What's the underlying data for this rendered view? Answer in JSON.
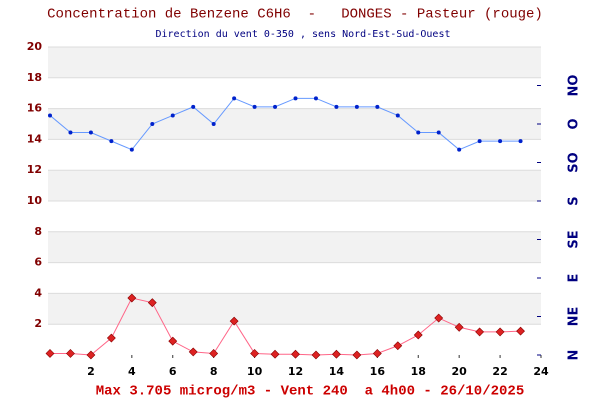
{
  "chart_data": {
    "type": "line",
    "title": "Concentration de Benzene C6H6  -   DONGES - Pasteur (rouge)",
    "subtitle": "Direction du vent 0-350 , sens Nord-Est-Sud-Ouest",
    "footer": "Max 3.705 microg/m3 - Vent 240  a 4h00 - 26/10/2025",
    "x": [
      0,
      1,
      2,
      3,
      4,
      5,
      6,
      7,
      8,
      9,
      10,
      11,
      12,
      13,
      14,
      15,
      16,
      17,
      18,
      19,
      20,
      21,
      22,
      23
    ],
    "xlim": [
      0,
      24
    ],
    "xticks": [
      2,
      4,
      6,
      8,
      10,
      12,
      14,
      16,
      18,
      20,
      22,
      24
    ],
    "ylim": [
      0,
      20
    ],
    "yticks": [
      2,
      4,
      6,
      8,
      10,
      12,
      14,
      16,
      18,
      20
    ],
    "y2lim": [
      0,
      360
    ],
    "y2ticks": [
      {
        "value": 0,
        "label": "N"
      },
      {
        "value": 45,
        "label": "NE"
      },
      {
        "value": 90,
        "label": "E"
      },
      {
        "value": 135,
        "label": "SE"
      },
      {
        "value": 180,
        "label": "S"
      },
      {
        "value": 225,
        "label": "SO"
      },
      {
        "value": 270,
        "label": "O"
      },
      {
        "value": 315,
        "label": "NO"
      }
    ],
    "grid": true,
    "series": [
      {
        "color": "#dd2222",
        "values": [
          0.1,
          0.1,
          0.0,
          1.1,
          3.7,
          3.4,
          0.9,
          0.2,
          0.1,
          2.2,
          0.1,
          0.05,
          0.05,
          0.0,
          0.05,
          0.0,
          0.1,
          0.6,
          1.3,
          2.4,
          1.8,
          1.5,
          1.5,
          1.55
        ]
      },
      {
        "color": "#0022cc",
        "axis": "y2",
        "values": [
          280,
          260,
          260,
          250,
          240,
          270,
          280,
          290,
          270,
          300,
          290,
          290,
          300,
          300,
          290,
          290,
          290,
          280,
          260,
          260,
          240,
          250,
          250,
          250
        ]
      }
    ]
  }
}
